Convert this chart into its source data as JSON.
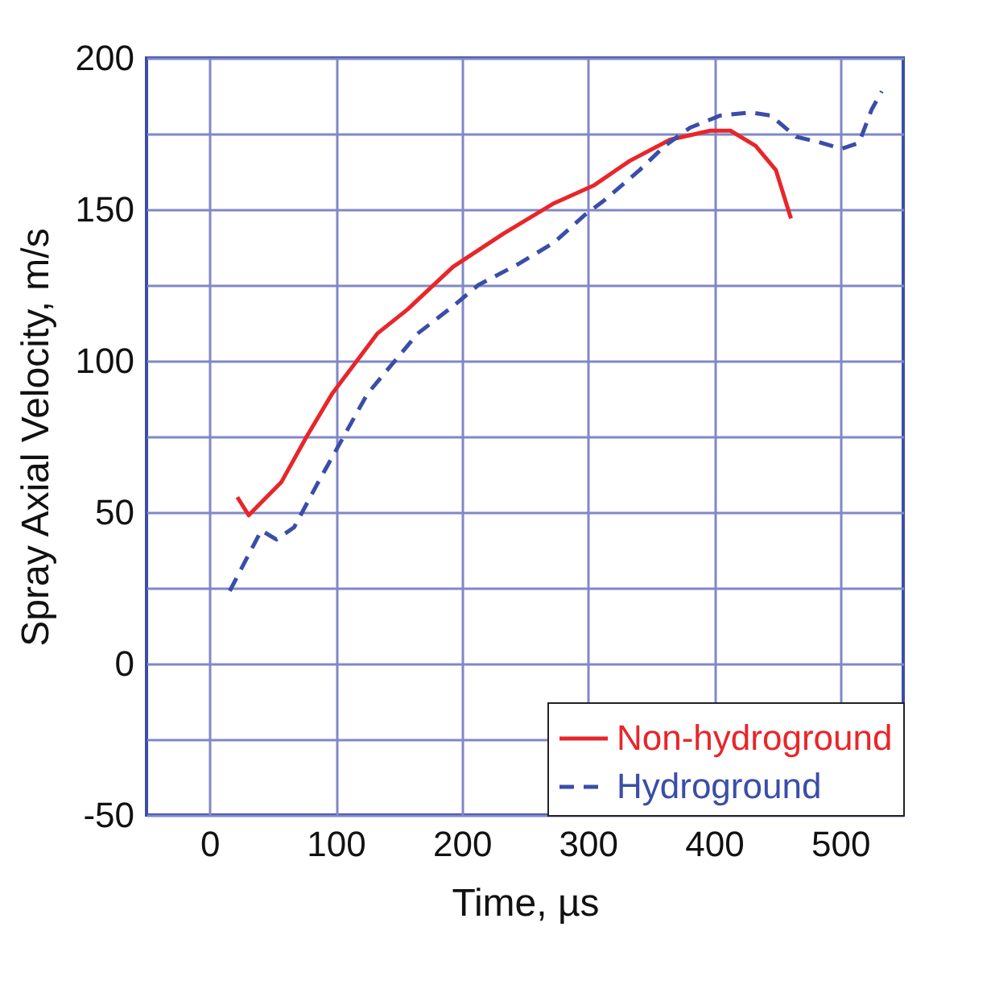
{
  "chart_data": {
    "type": "line",
    "xlabel": "Time, µs",
    "ylabel": "Spray Axial Velocity, m/s",
    "xlim": [
      -50,
      550
    ],
    "xticks": [
      0,
      100,
      200,
      300,
      400,
      500
    ],
    "ylim": [
      -50,
      200
    ],
    "yticks": [
      -50,
      {
        "value": -25,
        "label": null
      },
      0,
      {
        "value": 25,
        "label": null
      },
      50,
      {
        "value": 75,
        "label": null
      },
      100,
      {
        "value": 125,
        "label": null
      },
      150,
      {
        "value": 175,
        "label": null
      },
      200
    ],
    "grid": true,
    "legend": "bottom right",
    "marker": "none",
    "series": [
      {
        "name": "Non-hydroground",
        "color": "#e8262a",
        "line_style": "solid",
        "x": [
          22,
          31,
          57,
          77,
          97,
          133,
          157,
          193,
          233,
          273,
          305,
          333,
          365,
          397,
          413,
          433,
          449,
          461
        ],
        "values": [
          55,
          49,
          60,
          75,
          89,
          109,
          117,
          131,
          142,
          152,
          158,
          166,
          173,
          176,
          176,
          171,
          163,
          147
        ]
      },
      {
        "name": "Hydroground",
        "color": "#3a4ea8",
        "line_style": "dashed",
        "x": [
          16,
          41,
          53,
          67,
          85,
          101,
          125,
          149,
          165,
          193,
          213,
          245,
          273,
          297,
          313,
          341,
          361,
          381,
          405,
          429,
          445,
          465,
          485,
          501,
          515,
          525,
          533
        ],
        "values": [
          24,
          44,
          41,
          45,
          59,
          71,
          89,
          101,
          109,
          118,
          125,
          132,
          139,
          148,
          153,
          163,
          171,
          177,
          181,
          182,
          181,
          174,
          172,
          170,
          172,
          183,
          189
        ]
      }
    ]
  }
}
